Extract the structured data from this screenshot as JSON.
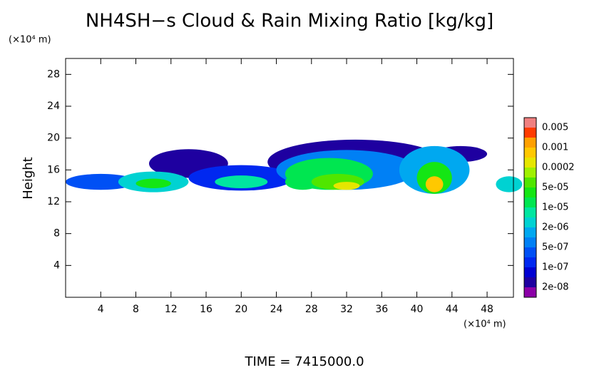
{
  "chart_data": {
    "type": "contour",
    "title": "NH4SH−s Cloud & Rain Mixing Ratio [kg/kg]",
    "y_unit": "(×10⁴ m)",
    "x_unit": "(×10⁴ m)",
    "y_label": "Height",
    "time_label": "TIME = 7415000.0",
    "xlim": [
      0,
      51
    ],
    "ylim": [
      0,
      30
    ],
    "xticks": [
      4,
      8,
      12,
      16,
      20,
      24,
      28,
      32,
      36,
      40,
      44,
      48
    ],
    "yticks": [
      4,
      8,
      12,
      16,
      20,
      24,
      28
    ],
    "colorbar": {
      "colors": [
        "#8c00a8",
        "#1e00a0",
        "#0000d2",
        "#0028f0",
        "#0050f5",
        "#0080f5",
        "#00a8f0",
        "#00d2d2",
        "#00e6a0",
        "#00e650",
        "#14e614",
        "#50e600",
        "#a0f000",
        "#e6e600",
        "#ffc800",
        "#ffa000",
        "#ff3c00",
        "#f08080"
      ],
      "ticks": [
        {
          "value": 2e-08,
          "label": "2e-08"
        },
        {
          "value": 1e-07,
          "label": "1e-07"
        },
        {
          "value": 5e-07,
          "label": "5e-07"
        },
        {
          "value": 2e-06,
          "label": "2e-06"
        },
        {
          "value": 1e-05,
          "label": "1e-05"
        },
        {
          "value": 5e-05,
          "label": "5e-05"
        },
        0.0002,
        0.001,
        0.005
      ]
    },
    "cloud": [
      {
        "x": 33,
        "y": 17,
        "rx": 10,
        "ry": 2.8,
        "value": 3e-08
      },
      {
        "x": 14,
        "y": 16.8,
        "rx": 4.5,
        "ry": 1.8,
        "value": 2e-08
      },
      {
        "x": 45,
        "y": 18,
        "rx": 3,
        "ry": 1,
        "value": 2e-08
      },
      {
        "x": 4,
        "y": 14.5,
        "rx": 4,
        "ry": 1,
        "value": 3e-07
      },
      {
        "x": 10,
        "y": 14.5,
        "rx": 4,
        "ry": 1.3,
        "value": 3e-06
      },
      {
        "x": 10,
        "y": 14.3,
        "rx": 2,
        "ry": 0.6,
        "value": 3e-05
      },
      {
        "x": 20,
        "y": 15,
        "rx": 6,
        "ry": 1.6,
        "value": 2e-07
      },
      {
        "x": 20,
        "y": 14.5,
        "rx": 3,
        "ry": 0.8,
        "value": 5e-06
      },
      {
        "x": 32,
        "y": 16,
        "rx": 8,
        "ry": 2.5,
        "value": 8e-07
      },
      {
        "x": 30,
        "y": 15.5,
        "rx": 5,
        "ry": 2,
        "value": 1e-05
      },
      {
        "x": 27,
        "y": 14.5,
        "rx": 2,
        "ry": 1,
        "value": 2e-05
      },
      {
        "x": 31,
        "y": 14.5,
        "rx": 3,
        "ry": 1,
        "value": 6e-05
      },
      {
        "x": 32,
        "y": 14,
        "rx": 1.5,
        "ry": 0.5,
        "value": 0.0004
      },
      {
        "x": 42,
        "y": 16,
        "rx": 4,
        "ry": 3,
        "value": 1e-06
      },
      {
        "x": 42,
        "y": 15,
        "rx": 2,
        "ry": 2,
        "value": 3e-05
      },
      {
        "x": 42,
        "y": 14.2,
        "rx": 1,
        "ry": 1,
        "value": 0.0005
      },
      {
        "x": 50.5,
        "y": 14.2,
        "rx": 1.5,
        "ry": 1,
        "value": 3e-06
      }
    ]
  }
}
